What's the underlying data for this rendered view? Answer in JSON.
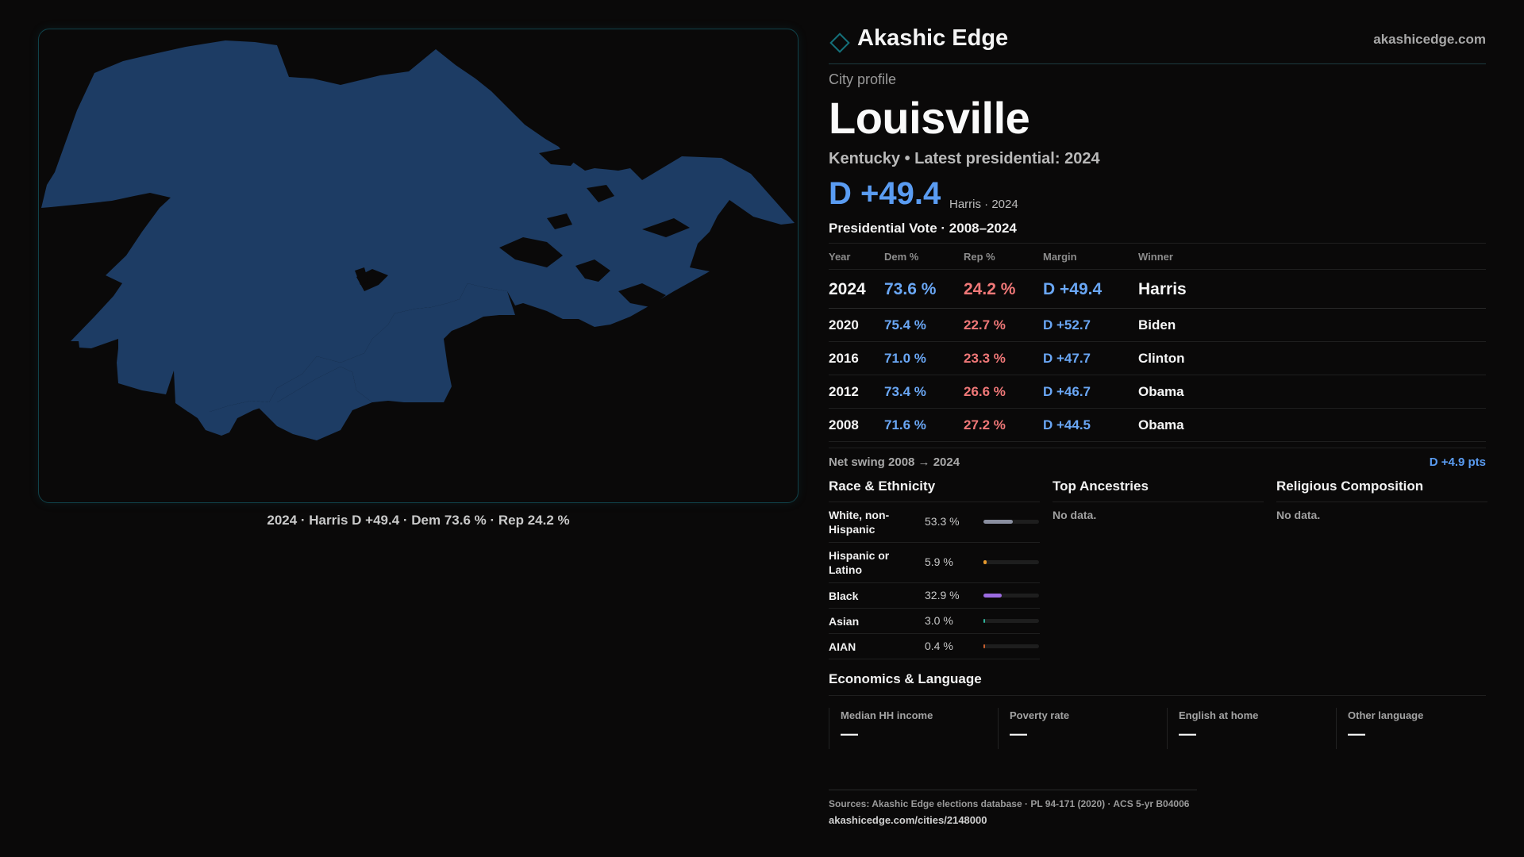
{
  "map": {
    "caption": "2024 · Harris D +49.4 · Dem 73.6 % · Rep 24.2 %",
    "fill_color": "#1d3c64"
  },
  "brand": {
    "name": "Akashic Edge",
    "url": "akashicedge.com",
    "icon": "diamond-icon",
    "accent": "#15707a"
  },
  "profile": {
    "eyebrow": "City profile",
    "city": "Louisville",
    "subtitle": "Kentucky • Latest presidential: 2024",
    "headline_margin": "D +49.4",
    "headline_note": "Harris · 2024"
  },
  "vote": {
    "title": "Presidential Vote · 2008–2024",
    "headers": {
      "year": "Year",
      "dem": "Dem %",
      "rep": "Rep %",
      "margin": "Margin",
      "winner": "Winner"
    },
    "rows": [
      {
        "year": "2024",
        "dem": "73.6 %",
        "rep": "24.2 %",
        "margin": "D +49.4",
        "winner": "Harris"
      },
      {
        "year": "2020",
        "dem": "75.4 %",
        "rep": "22.7 %",
        "margin": "D +52.7",
        "winner": "Biden"
      },
      {
        "year": "2016",
        "dem": "71.0 %",
        "rep": "23.3 %",
        "margin": "D +47.7",
        "winner": "Clinton"
      },
      {
        "year": "2012",
        "dem": "73.4 %",
        "rep": "26.6 %",
        "margin": "D +46.7",
        "winner": "Obama"
      },
      {
        "year": "2008",
        "dem": "71.6 %",
        "rep": "27.2 %",
        "margin": "D +44.5",
        "winner": "Obama"
      }
    ],
    "swing_label": "Net swing 2008 → 2024",
    "swing_value": "D +4.9 pts",
    "dem_color": "#6aa7f5",
    "rep_color": "#f07878"
  },
  "race": {
    "title": "Race & Ethnicity",
    "rows": [
      {
        "label": "White, non-Hispanic",
        "pct": "53.3 %",
        "value": 53.3,
        "color": "#8a8fa0"
      },
      {
        "label": "Hispanic or Latino",
        "pct": "5.9 %",
        "value": 5.9,
        "color": "#e69a2e"
      },
      {
        "label": "Black",
        "pct": "32.9 %",
        "value": 32.9,
        "color": "#9b6be0"
      },
      {
        "label": "Asian",
        "pct": "3.0 %",
        "value": 3.0,
        "color": "#2fb39a"
      },
      {
        "label": "AIAN",
        "pct": "0.4 %",
        "value": 0.4,
        "color": "#c9602f"
      }
    ]
  },
  "ancestries": {
    "title": "Top Ancestries",
    "empty": "No data."
  },
  "religion": {
    "title": "Religious Composition",
    "empty": "No data."
  },
  "economics": {
    "title": "Economics & Language",
    "cells": [
      {
        "label": "Median HH income",
        "value": "—"
      },
      {
        "label": "Poverty rate",
        "value": "—"
      },
      {
        "label": "English at home",
        "value": "—"
      },
      {
        "label": "Other language",
        "value": "—"
      }
    ]
  },
  "sources": {
    "text": "Sources: Akashic Edge elections database · PL 94-171 (2020) · ACS 5-yr B04006",
    "url": "akashicedge.com/cities/2148000"
  }
}
